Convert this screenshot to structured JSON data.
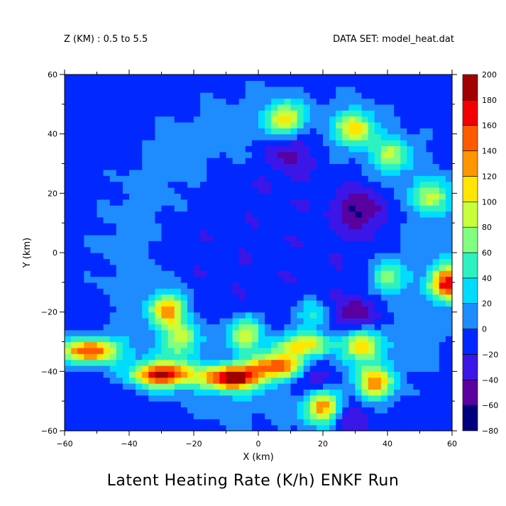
{
  "header": {
    "left": "Z (KM) : 0.5 to 5.5",
    "right": "DATA SET: model_heat.dat"
  },
  "chart_data": {
    "type": "heatmap",
    "title": "Latent Heating Rate (K/h) ENKF Run",
    "xlabel": "X (km)",
    "ylabel": "Y (km)",
    "xlim": [
      -60,
      60
    ],
    "ylim": [
      -60,
      60
    ],
    "x_ticks": [
      -60,
      -40,
      -20,
      0,
      20,
      40,
      60
    ],
    "y_ticks": [
      -60,
      -40,
      -20,
      0,
      20,
      40,
      60
    ],
    "colorbar": {
      "levels": [
        -80,
        -60,
        -40,
        -20,
        0,
        20,
        40,
        60,
        80,
        100,
        120,
        140,
        160,
        180,
        200
      ],
      "colors": [
        "#00007f",
        "#5a009f",
        "#3c16e6",
        "#0028ff",
        "#1e8cff",
        "#00dcff",
        "#2cf2c0",
        "#80ff80",
        "#c8ff3c",
        "#ffe600",
        "#ff9600",
        "#ff5a00",
        "#f00000",
        "#a00000"
      ]
    },
    "background_value": -10,
    "features": [
      {
        "kind": "eyewall-band",
        "x": -52,
        "y": -33,
        "peak": 170
      },
      {
        "kind": "eyewall-band",
        "x": -30,
        "y": -41,
        "peak": 190
      },
      {
        "kind": "eyewall-band",
        "x": -8,
        "y": -42,
        "peak": 195
      },
      {
        "kind": "eyewall-band",
        "x": 6,
        "y": -38,
        "peak": 150
      },
      {
        "kind": "eyewall-band",
        "x": 14,
        "y": -31,
        "peak": 120
      },
      {
        "kind": "rainband",
        "x": -28,
        "y": -19,
        "peak": 130
      },
      {
        "kind": "rainband",
        "x": -24,
        "y": -29,
        "peak": 90
      },
      {
        "kind": "rainband",
        "x": -4,
        "y": -27,
        "peak": 110
      },
      {
        "kind": "rainband",
        "x": 17,
        "y": -21,
        "peak": 60
      },
      {
        "kind": "rainband",
        "x": 32,
        "y": -31,
        "peak": 130
      },
      {
        "kind": "rainband",
        "x": 36,
        "y": -44,
        "peak": 125
      },
      {
        "kind": "rainband",
        "x": 20,
        "y": -52,
        "peak": 140
      },
      {
        "kind": "rainband",
        "x": 40,
        "y": -8,
        "peak": 80
      },
      {
        "kind": "rainband",
        "x": 59,
        "y": -10,
        "peak": 175
      },
      {
        "kind": "rainband",
        "x": 8,
        "y": 45,
        "peak": 110
      },
      {
        "kind": "rainband",
        "x": 30,
        "y": 42,
        "peak": 110
      },
      {
        "kind": "rainband",
        "x": 41,
        "y": 33,
        "peak": 80
      },
      {
        "kind": "rainband",
        "x": 54,
        "y": 19,
        "peak": 85
      },
      {
        "kind": "downdraft",
        "x": 10,
        "y": 34,
        "peak": -45
      },
      {
        "kind": "downdraft",
        "x": 32,
        "y": 15,
        "peak": -55
      },
      {
        "kind": "downdraft",
        "x": 30,
        "y": -22,
        "peak": -45
      },
      {
        "kind": "downdraft",
        "x": 17,
        "y": -42,
        "peak": -45
      },
      {
        "kind": "downdraft",
        "x": 28,
        "y": -54,
        "peak": -40
      }
    ]
  }
}
